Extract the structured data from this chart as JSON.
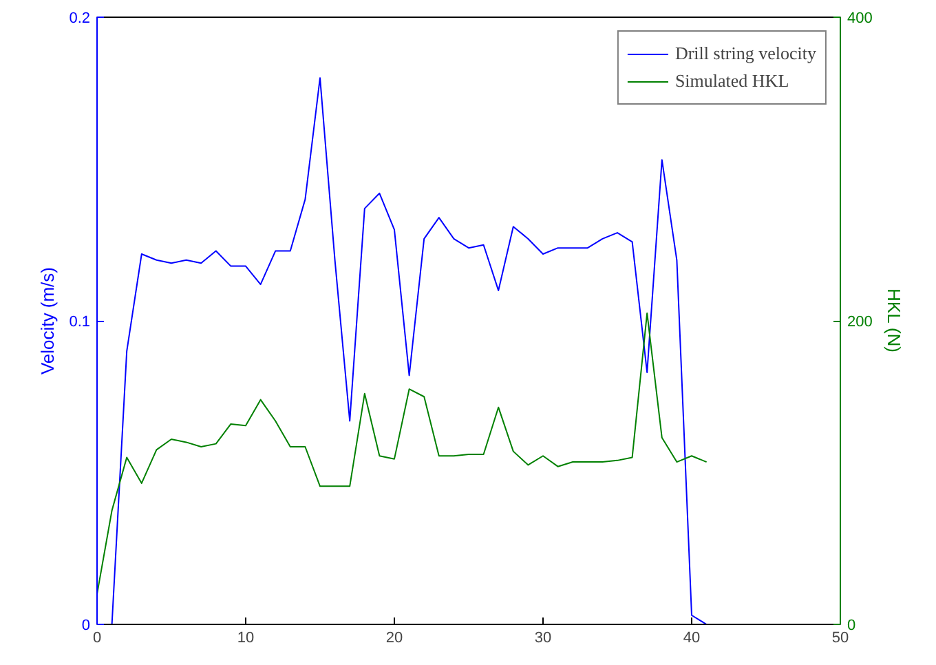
{
  "chart_data": {
    "type": "line",
    "ylabel": "Velocity (m/s)",
    "y2label": "HKL (N)",
    "xlim": [
      0,
      50
    ],
    "xticks": [
      0,
      10,
      20,
      30,
      40,
      50
    ],
    "ylim": [
      0,
      0.2
    ],
    "yticks": [
      0,
      0.1,
      0.2
    ],
    "y2lim": [
      0,
      400
    ],
    "y2ticks": [
      0,
      200,
      400
    ],
    "legend": "top right",
    "grid": false,
    "marker": "none",
    "line_style": "solid",
    "series": [
      {
        "name": "Drill string velocity",
        "color": "#0000ff",
        "x": [
          1,
          2,
          3,
          4,
          5,
          6,
          7,
          8,
          9,
          10,
          11,
          12,
          13,
          14,
          15,
          16,
          17,
          18,
          19,
          20,
          21,
          22,
          23,
          24,
          25,
          26,
          27,
          28,
          29,
          30,
          31,
          32,
          33,
          34,
          35,
          36,
          37,
          38,
          39,
          40,
          41
        ],
        "values": [
          0,
          0.09,
          0.122,
          0.12,
          0.119,
          0.12,
          0.119,
          0.123,
          0.118,
          0.118,
          0.112,
          0.123,
          0.123,
          0.14,
          0.18,
          0.12,
          0.067,
          0.137,
          0.142,
          0.13,
          0.082,
          0.127,
          0.134,
          0.127,
          0.124,
          0.125,
          0.11,
          0.131,
          0.127,
          0.122,
          0.124,
          0.124,
          0.124,
          0.127,
          0.129,
          0.126,
          0.083,
          0.153,
          0.12,
          0.003,
          0
        ]
      },
      {
        "name": "Simulated HKL",
        "color": "#008000",
        "axis": "y2",
        "x": [
          0,
          1,
          2,
          3,
          4,
          5,
          6,
          7,
          8,
          9,
          10,
          11,
          12,
          13,
          14,
          15,
          16,
          17,
          18,
          19,
          20,
          21,
          22,
          23,
          24,
          25,
          26,
          27,
          28,
          29,
          30,
          31,
          32,
          33,
          34,
          35,
          36,
          37,
          38,
          39,
          40,
          41
        ],
        "values": [
          20,
          75,
          110,
          93,
          115,
          122,
          120,
          117,
          119,
          132,
          131,
          148,
          134,
          117,
          117,
          91,
          91,
          91,
          152,
          111,
          109,
          155,
          150,
          111,
          111,
          112,
          112,
          143,
          114,
          105,
          111,
          104,
          107,
          107,
          107,
          108,
          110,
          205,
          123,
          107,
          111,
          107
        ]
      }
    ]
  }
}
